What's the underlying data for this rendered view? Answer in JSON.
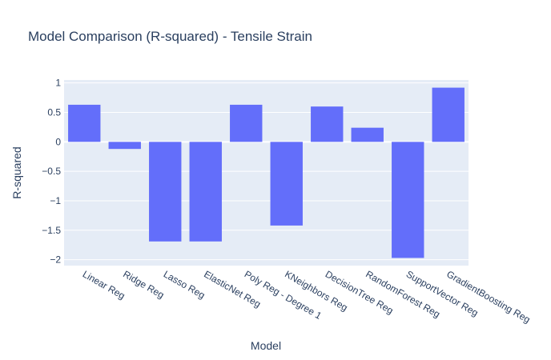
{
  "chart_data": {
    "type": "bar",
    "title": "Model Comparison (R-squared) - Tensile Strain",
    "xlabel": "Model",
    "ylabel": "R-squared",
    "categories": [
      "Linear Reg",
      "Ridge Reg",
      "Lasso Reg",
      "ElasticNet Reg",
      "Poly Reg - Degree 1",
      "KNeighbors Reg",
      "DecisionTree Reg",
      "RandomForest Reg",
      "SupportVector Reg",
      "GradientBoosting Reg"
    ],
    "values": [
      0.63,
      -0.12,
      -1.69,
      -1.69,
      0.63,
      -1.42,
      0.6,
      0.24,
      -1.97,
      0.92
    ],
    "ylim": [
      -2.1,
      1.05
    ],
    "yticks": [
      1,
      0.5,
      0,
      -0.5,
      -1,
      -1.5,
      -2
    ],
    "ytick_labels": [
      "1",
      "0.5",
      "0",
      "−0.5",
      "−1",
      "−1.5",
      "−2"
    ],
    "grid": true,
    "bar_color": "#636efa",
    "plot_bgcolor": "#e5ecf6"
  }
}
